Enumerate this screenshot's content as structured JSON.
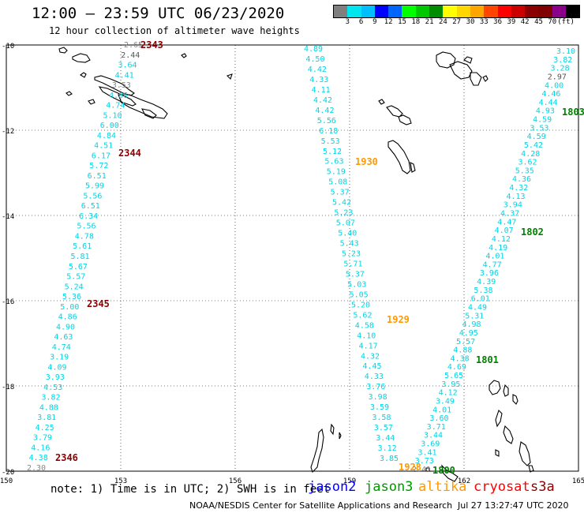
{
  "title": "12:00 — 23:59 UTC 06/23/2020",
  "subtitle": "12 hour collection of altimeter wave heights",
  "colorbar": {
    "colors": [
      "#7f7f7f",
      "#00e5ee",
      "#00bfff",
      "#0000ff",
      "#0064ff",
      "#00ff00",
      "#00c800",
      "#008c00",
      "#ffff00",
      "#ffd700",
      "#ffa500",
      "#ff4500",
      "#ff0000",
      "#cd0000",
      "#8b0000",
      "#800000",
      "#8b008b",
      "#000000"
    ],
    "labels": [
      "3",
      "6",
      "9",
      "12",
      "15",
      "18",
      "21",
      "24",
      "27",
      "30",
      "33",
      "36",
      "39",
      "42",
      "45",
      "70",
      "(ft)"
    ]
  },
  "axes": {
    "lon_ticks": [
      "150",
      "153",
      "156",
      "159",
      "162",
      "165"
    ],
    "lat_ticks": [
      "-10",
      "-12",
      "-14",
      "-16",
      "-18",
      "-20"
    ]
  },
  "tracks": [
    {
      "points": [
        {
          "v": "2.65",
          "c": "#888888"
        },
        {
          "v": "2.44",
          "c": "#555555"
        },
        {
          "v": "3.64",
          "c": "#00d5e5"
        },
        {
          "v": "4.41",
          "c": "#00d5e5"
        },
        {
          "v": "3.53",
          "c": "#888888"
        },
        {
          "v": "4.86",
          "c": "#00d5e5"
        },
        {
          "v": "4.74",
          "c": "#00d5e5"
        },
        {
          "v": "5.10",
          "c": "#00d5e5"
        },
        {
          "v": "6.00",
          "c": "#00d5e5"
        },
        {
          "v": "4.84",
          "c": "#00d5e5"
        },
        {
          "v": "4.51",
          "c": "#00d5e5"
        },
        {
          "v": "6.17",
          "c": "#00d5e5"
        },
        {
          "v": "5.72",
          "c": "#00d5e5"
        },
        {
          "v": "6.51",
          "c": "#00d5e5"
        },
        {
          "v": "5.99",
          "c": "#00d5e5"
        },
        {
          "v": "5.56",
          "c": "#00d5e5"
        },
        {
          "v": "6.51",
          "c": "#00d5e5"
        },
        {
          "v": "6.34",
          "c": "#00d5e5"
        },
        {
          "v": "5.56",
          "c": "#00d5e5"
        },
        {
          "v": "4.78",
          "c": "#00d5e5"
        },
        {
          "v": "5.61",
          "c": "#00d5e5"
        },
        {
          "v": "5.81",
          "c": "#00d5e5"
        },
        {
          "v": "5.67",
          "c": "#00d5e5"
        },
        {
          "v": "5.57",
          "c": "#00d5e5"
        },
        {
          "v": "5.24",
          "c": "#00d5e5"
        },
        {
          "v": "5.36",
          "c": "#00d5e5"
        },
        {
          "v": "5.00",
          "c": "#00d5e5"
        },
        {
          "v": "4.86",
          "c": "#00d5e5"
        },
        {
          "v": "4.90",
          "c": "#00d5e5"
        },
        {
          "v": "4.63",
          "c": "#00d5e5"
        },
        {
          "v": "4.74",
          "c": "#00d5e5"
        },
        {
          "v": "3.19",
          "c": "#00d5e5"
        },
        {
          "v": "4.09",
          "c": "#00d5e5"
        },
        {
          "v": "3.93",
          "c": "#00d5e5"
        },
        {
          "v": "4.53",
          "c": "#00d5e5"
        },
        {
          "v": "3.82",
          "c": "#00d5e5"
        },
        {
          "v": "4.88",
          "c": "#00d5e5"
        },
        {
          "v": "3.81",
          "c": "#00d5e5"
        },
        {
          "v": "4.25",
          "c": "#00d5e5"
        },
        {
          "v": "3.79",
          "c": "#00d5e5"
        },
        {
          "v": "4.16",
          "c": "#00d5e5"
        },
        {
          "v": "4.38",
          "c": "#00d5e5"
        },
        {
          "v": "2.30",
          "c": "#888888"
        }
      ],
      "times": [
        {
          "label": "2343",
          "color": "#8b0000"
        },
        {
          "label": "2344",
          "color": "#8b0000"
        },
        {
          "label": "2345",
          "color": "#8b0000"
        },
        {
          "label": "2346",
          "color": "#8b0000"
        }
      ]
    },
    {
      "points": [
        {
          "v": "4.89",
          "c": "#00d5e5"
        },
        {
          "v": "4.50",
          "c": "#00d5e5"
        },
        {
          "v": "4.42",
          "c": "#00d5e5"
        },
        {
          "v": "4.33",
          "c": "#00d5e5"
        },
        {
          "v": "4.11",
          "c": "#00d5e5"
        },
        {
          "v": "4.42",
          "c": "#00d5e5"
        },
        {
          "v": "4.42",
          "c": "#00d5e5"
        },
        {
          "v": "5.56",
          "c": "#00d5e5"
        },
        {
          "v": "6.18",
          "c": "#00d5e5"
        },
        {
          "v": "5.53",
          "c": "#00d5e5"
        },
        {
          "v": "5.12",
          "c": "#00d5e5"
        },
        {
          "v": "5.63",
          "c": "#00d5e5"
        },
        {
          "v": "5.19",
          "c": "#00d5e5"
        },
        {
          "v": "5.08",
          "c": "#00d5e5"
        },
        {
          "v": "5.37",
          "c": "#00d5e5"
        },
        {
          "v": "5.42",
          "c": "#00d5e5"
        },
        {
          "v": "5.23",
          "c": "#00d5e5"
        },
        {
          "v": "5.07",
          "c": "#00d5e5"
        },
        {
          "v": "5.40",
          "c": "#00d5e5"
        },
        {
          "v": "5.43",
          "c": "#00d5e5"
        },
        {
          "v": "5.23",
          "c": "#00d5e5"
        },
        {
          "v": "5.71",
          "c": "#00d5e5"
        },
        {
          "v": "5.37",
          "c": "#00d5e5"
        },
        {
          "v": "5.03",
          "c": "#00d5e5"
        },
        {
          "v": "5.05",
          "c": "#00d5e5"
        },
        {
          "v": "5.20",
          "c": "#00d5e5"
        },
        {
          "v": "5.62",
          "c": "#00d5e5"
        },
        {
          "v": "4.58",
          "c": "#00d5e5"
        },
        {
          "v": "4.10",
          "c": "#00d5e5"
        },
        {
          "v": "4.17",
          "c": "#00d5e5"
        },
        {
          "v": "4.32",
          "c": "#00d5e5"
        },
        {
          "v": "4.45",
          "c": "#00d5e5"
        },
        {
          "v": "4.33",
          "c": "#00d5e5"
        },
        {
          "v": "3.76",
          "c": "#00d5e5"
        },
        {
          "v": "3.98",
          "c": "#00d5e5"
        },
        {
          "v": "3.59",
          "c": "#00d5e5"
        },
        {
          "v": "3.58",
          "c": "#00d5e5"
        },
        {
          "v": "3.57",
          "c": "#00d5e5"
        },
        {
          "v": "3.44",
          "c": "#00d5e5"
        },
        {
          "v": "3.12",
          "c": "#00d5e5"
        },
        {
          "v": "3.85",
          "c": "#00d5e5"
        }
      ],
      "times": [
        {
          "label": "1930",
          "color": "#ff9900"
        },
        {
          "label": "1929",
          "color": "#ff9900"
        },
        {
          "label": "1928",
          "color": "#ff9900"
        }
      ]
    },
    {
      "points": [
        {
          "v": "3.10",
          "c": "#00d5e5"
        },
        {
          "v": "3.82",
          "c": "#00d5e5"
        },
        {
          "v": "3.28",
          "c": "#00d5e5"
        },
        {
          "v": "2.97",
          "c": "#555555"
        },
        {
          "v": "4.00",
          "c": "#00d5e5"
        },
        {
          "v": "4.46",
          "c": "#00d5e5"
        },
        {
          "v": "4.44",
          "c": "#00d5e5"
        },
        {
          "v": "4.93",
          "c": "#00d5e5"
        },
        {
          "v": "4.59",
          "c": "#00d5e5"
        },
        {
          "v": "3.53",
          "c": "#00d5e5"
        },
        {
          "v": "4.59",
          "c": "#00d5e5"
        },
        {
          "v": "5.42",
          "c": "#00d5e5"
        },
        {
          "v": "4.28",
          "c": "#00d5e5"
        },
        {
          "v": "3.62",
          "c": "#00d5e5"
        },
        {
          "v": "5.35",
          "c": "#00d5e5"
        },
        {
          "v": "4.36",
          "c": "#00d5e5"
        },
        {
          "v": "4.32",
          "c": "#00d5e5"
        },
        {
          "v": "4.13",
          "c": "#00d5e5"
        },
        {
          "v": "3.94",
          "c": "#00d5e5"
        },
        {
          "v": "4.37",
          "c": "#00d5e5"
        },
        {
          "v": "4.47",
          "c": "#00d5e5"
        },
        {
          "v": "4.07",
          "c": "#00d5e5"
        },
        {
          "v": "4.12",
          "c": "#00d5e5"
        },
        {
          "v": "4.19",
          "c": "#00d5e5"
        },
        {
          "v": "4.01",
          "c": "#00d5e5"
        },
        {
          "v": "4.77",
          "c": "#00d5e5"
        },
        {
          "v": "3.96",
          "c": "#00d5e5"
        },
        {
          "v": "4.39",
          "c": "#00d5e5"
        },
        {
          "v": "5.38",
          "c": "#00d5e5"
        },
        {
          "v": "6.01",
          "c": "#00d5e5"
        },
        {
          "v": "4.49",
          "c": "#00d5e5"
        },
        {
          "v": "5.31",
          "c": "#00d5e5"
        },
        {
          "v": "4.98",
          "c": "#00d5e5"
        },
        {
          "v": "4.95",
          "c": "#00d5e5"
        },
        {
          "v": "5.57",
          "c": "#00d5e5"
        },
        {
          "v": "4.88",
          "c": "#00d5e5"
        },
        {
          "v": "4.38",
          "c": "#00d5e5"
        },
        {
          "v": "4.69",
          "c": "#00d5e5"
        },
        {
          "v": "5.65",
          "c": "#00d5e5"
        },
        {
          "v": "3.95",
          "c": "#00d5e5"
        },
        {
          "v": "4.12",
          "c": "#00d5e5"
        },
        {
          "v": "3.49",
          "c": "#00d5e5"
        },
        {
          "v": "4.01",
          "c": "#00d5e5"
        },
        {
          "v": "3.60",
          "c": "#00d5e5"
        },
        {
          "v": "3.71",
          "c": "#00d5e5"
        },
        {
          "v": "3.44",
          "c": "#00d5e5"
        },
        {
          "v": "3.69",
          "c": "#00d5e5"
        },
        {
          "v": "3.41",
          "c": "#00d5e5"
        },
        {
          "v": "3.73",
          "c": "#00d5e5"
        },
        {
          "v": "2.41",
          "c": "#888888"
        }
      ],
      "times": [
        {
          "label": "1803",
          "color": "#008000"
        },
        {
          "label": "1802",
          "color": "#008000"
        },
        {
          "label": "1801",
          "color": "#008000"
        },
        {
          "label": "1800",
          "color": "#008000"
        }
      ]
    }
  ],
  "note": "note: 1) Time is in UTC; 2) SWH is in feet",
  "legend": [
    {
      "label": "jason2",
      "color": "#0000ff"
    },
    {
      "label": "jason3",
      "color": "#009900"
    },
    {
      "label": "altika",
      "color": "#ff9900"
    },
    {
      "label": "cryosat",
      "color": "#ff0000"
    },
    {
      "label": "s3a",
      "color": "#8b0000"
    }
  ],
  "credit": "NOAA/NESDIS Center for Satellite Applications and Research",
  "timestamp": "Jul 27 13:27:47 UTC 2020"
}
